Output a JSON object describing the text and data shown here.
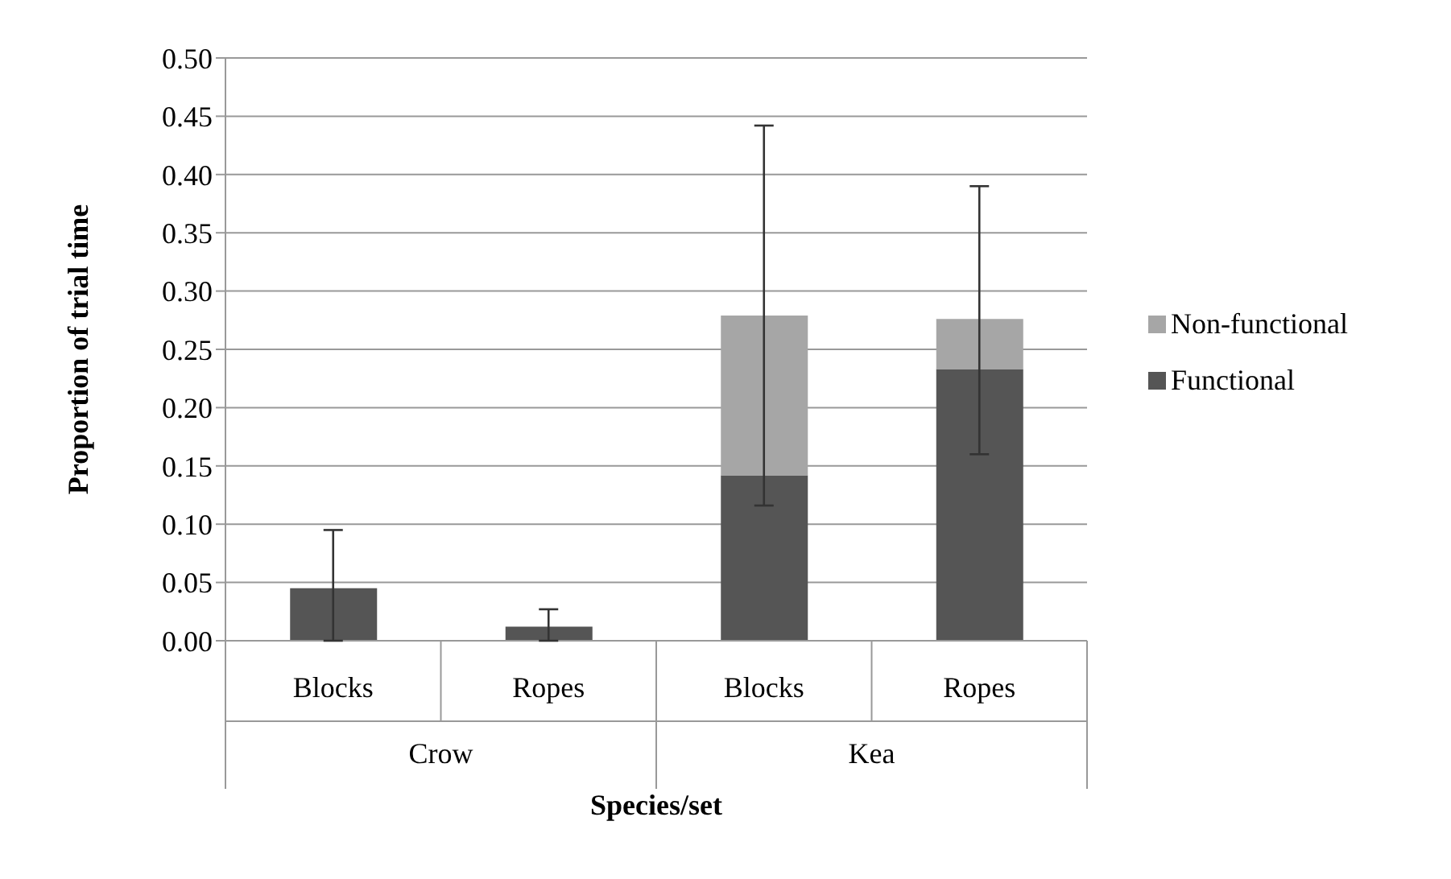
{
  "chart_data": {
    "type": "bar",
    "xlabel": "Species/set",
    "ylabel": "Proportion of trial time",
    "categories": [
      "Blocks",
      "Ropes",
      "Blocks",
      "Ropes"
    ],
    "annotations": [
      "Crow",
      "Kea"
    ],
    "stacked": true,
    "series": [
      {
        "name": "Functional",
        "color": "#555555",
        "values": [
          0.045,
          0.012,
          0.142,
          0.233
        ]
      },
      {
        "name": "Non-functional",
        "color": "#a6a6a6",
        "values": [
          0,
          0,
          0.137,
          0.043
        ],
        "errors": [
          [
            0,
            0.095
          ],
          [
            0,
            0.027
          ],
          [
            0.116,
            0.442
          ],
          [
            0.16,
            0.39
          ]
        ]
      }
    ],
    "ylim": [
      0,
      0.5
    ],
    "yticks": [
      {
        "value": 0,
        "label": "0.00"
      },
      0.05,
      {
        "value": 0.1,
        "label": "0.10"
      },
      0.15,
      {
        "value": 0.2,
        "label": "0.20"
      },
      0.25,
      {
        "value": 0.3,
        "label": "0.30"
      },
      0.35,
      {
        "value": 0.4,
        "label": "0.40"
      },
      0.45,
      {
        "value": 0.5,
        "label": "0.50"
      }
    ],
    "grid": "y",
    "legend": "right"
  }
}
